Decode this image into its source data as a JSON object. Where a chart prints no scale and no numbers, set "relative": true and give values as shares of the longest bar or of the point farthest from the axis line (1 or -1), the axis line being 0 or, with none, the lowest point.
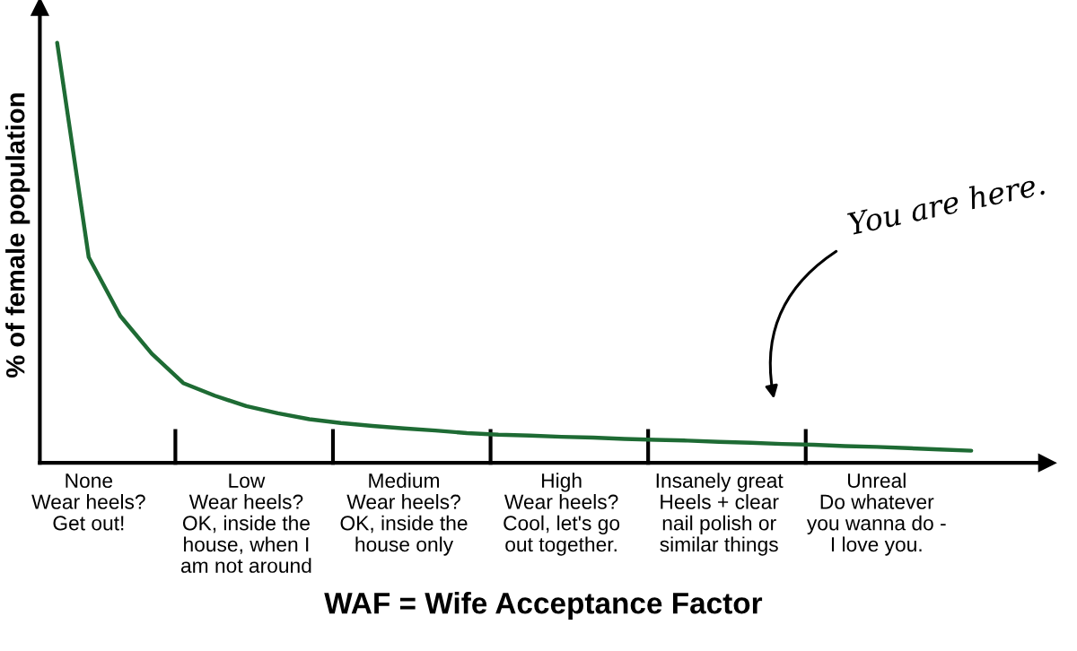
{
  "chart_data": {
    "type": "line",
    "relative": true,
    "categories": [
      null,
      "None\nWear heels?\nGet out!",
      null,
      null,
      null,
      null,
      "Low\nWear heels?\nOK, inside the\nhouse, when I\nam not around",
      null,
      null,
      null,
      null,
      "Medium\nWear heels?\nOK, inside the\nhouse only",
      null,
      null,
      null,
      null,
      "High\nWear heels?\nCool, let's go\nout together.",
      null,
      null,
      null,
      null,
      "Insanely great\nHeels + clear\nnail polish or\nsimilar things",
      null,
      null,
      null,
      null,
      "Unreal\nDo whatever\nyou wanna do -\nI love you.",
      null,
      null,
      null
    ],
    "series": [
      {
        "color": "#1e6b34",
        "values": [
          1.0,
          0.49,
          0.35,
          0.26,
          0.19,
          0.16,
          0.135,
          0.118,
          0.104,
          0.095,
          0.088,
          0.082,
          0.077,
          0.071,
          0.067,
          0.065,
          0.062,
          0.06,
          0.057,
          0.055,
          0.053,
          0.05,
          0.048,
          0.045,
          0.043,
          0.04,
          0.038,
          0.035,
          0.032,
          0.029
        ]
      }
    ],
    "xlabel": "WAF = Wife Acceptance Factor",
    "ylabel": "% of female population",
    "annotations": [
      "You are here."
    ],
    "grid": false,
    "legend": false
  }
}
